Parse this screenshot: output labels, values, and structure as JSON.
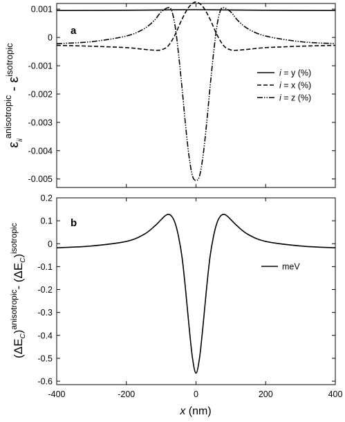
{
  "chart_data": [
    {
      "type": "line",
      "panel_label": "a",
      "ylabel_main": "ε",
      "ylabel_sub": "ii",
      "ylabel_sup1": "anisotropic",
      "ylabel_mid": " - ε",
      "ylabel_sup2": "isotropic",
      "xlim": [
        -400,
        400
      ],
      "ylim": [
        -0.0053,
        0.0012
      ],
      "xticks": [
        -400,
        -200,
        0,
        200,
        400
      ],
      "yticks": [
        0.001,
        0,
        -0.001,
        -0.002,
        -0.003,
        -0.004,
        -0.005
      ],
      "ytick_labels": [
        "0.001",
        "0",
        "-0.001",
        "-0.002",
        "-0.003",
        "-0.004",
        "-0.005"
      ],
      "legend_position": "middle-right",
      "series": [
        {
          "legend_label_var": "i",
          "legend_label_rest": " = y (%)",
          "style": "solid",
          "x": [
            -400,
            -200,
            -100,
            0,
            100,
            200,
            400
          ],
          "y": [
            0.00095,
            0.00096,
            0.00097,
            0.00098,
            0.00097,
            0.00096,
            0.00095
          ]
        },
        {
          "legend_label_var": "i",
          "legend_label_rest": " = x (%)",
          "style": "dashed",
          "x": [
            -400,
            -300,
            -200,
            -150,
            -120,
            -100,
            -80,
            -60,
            -40,
            -20,
            0,
            20,
            40,
            60,
            80,
            100,
            120,
            150,
            200,
            300,
            400
          ],
          "y": [
            -0.00028,
            -0.00031,
            -0.00036,
            -0.00042,
            -0.00045,
            -0.00044,
            -0.0003,
            0.0001,
            0.00065,
            0.00108,
            0.00125,
            0.00108,
            0.00065,
            0.0001,
            -0.0003,
            -0.00044,
            -0.00045,
            -0.00042,
            -0.00036,
            -0.00031,
            -0.00028
          ]
        },
        {
          "legend_label_var": "i",
          "legend_label_rest": " = z (%)",
          "style": "dashdotdot",
          "x": [
            -400,
            -300,
            -200,
            -150,
            -120,
            -100,
            -80,
            -70,
            -60,
            -50,
            -40,
            -30,
            -20,
            -10,
            0,
            10,
            20,
            30,
            40,
            50,
            60,
            70,
            80,
            100,
            120,
            150,
            200,
            300,
            400
          ],
          "y": [
            -0.00022,
            -0.00015,
            5e-05,
            0.0003,
            0.0006,
            0.0009,
            0.00105,
            0.00095,
            0.0004,
            -0.0006,
            -0.0018,
            -0.0031,
            -0.0042,
            -0.0049,
            -0.00505,
            -0.0049,
            -0.0042,
            -0.0031,
            -0.0018,
            -0.0006,
            0.0004,
            0.00095,
            0.00105,
            0.0009,
            0.0006,
            0.0003,
            5e-05,
            -0.00015,
            -0.00022
          ]
        }
      ]
    },
    {
      "type": "line",
      "panel_label": "b",
      "ylabel_part1": "(ΔE",
      "ylabel_sub1": "C",
      "ylabel_close1": ")",
      "ylabel_sup1": "anisotropic",
      "ylabel_part2": "- (ΔE",
      "ylabel_sub2": "C",
      "ylabel_close2": ")",
      "ylabel_sup2": "isotropic",
      "xlabel_var": "x",
      "xlabel_rest": " (nm)",
      "xlim": [
        -400,
        400
      ],
      "ylim": [
        -0.615,
        0.2
      ],
      "xticks": [
        -400,
        -200,
        0,
        200,
        400
      ],
      "xtick_labels": [
        "-400",
        "-200",
        "0",
        "200",
        "400"
      ],
      "yticks": [
        0.2,
        0.1,
        0,
        -0.1,
        -0.2,
        -0.3,
        -0.4,
        -0.5,
        -0.6
      ],
      "ytick_labels": [
        "0.2",
        "0.1",
        "0",
        "-0.1",
        "-0.2",
        "-0.3",
        "-0.4",
        "-0.5",
        "-0.6"
      ],
      "legend_position": "middle-right",
      "series": [
        {
          "name": "meV",
          "style": "solid",
          "x": [
            -400,
            -300,
            -200,
            -150,
            -120,
            -100,
            -90,
            -80,
            -70,
            -60,
            -50,
            -40,
            -30,
            -20,
            -10,
            0,
            10,
            20,
            30,
            40,
            50,
            60,
            70,
            80,
            90,
            100,
            120,
            150,
            200,
            300,
            400
          ],
          "y": [
            -0.018,
            -0.01,
            0.01,
            0.04,
            0.075,
            0.105,
            0.12,
            0.128,
            0.12,
            0.09,
            0.03,
            -0.06,
            -0.2,
            -0.36,
            -0.5,
            -0.565,
            -0.5,
            -0.36,
            -0.2,
            -0.06,
            0.03,
            0.09,
            0.12,
            0.128,
            0.12,
            0.105,
            0.075,
            0.04,
            0.01,
            -0.01,
            -0.018
          ]
        }
      ]
    }
  ]
}
